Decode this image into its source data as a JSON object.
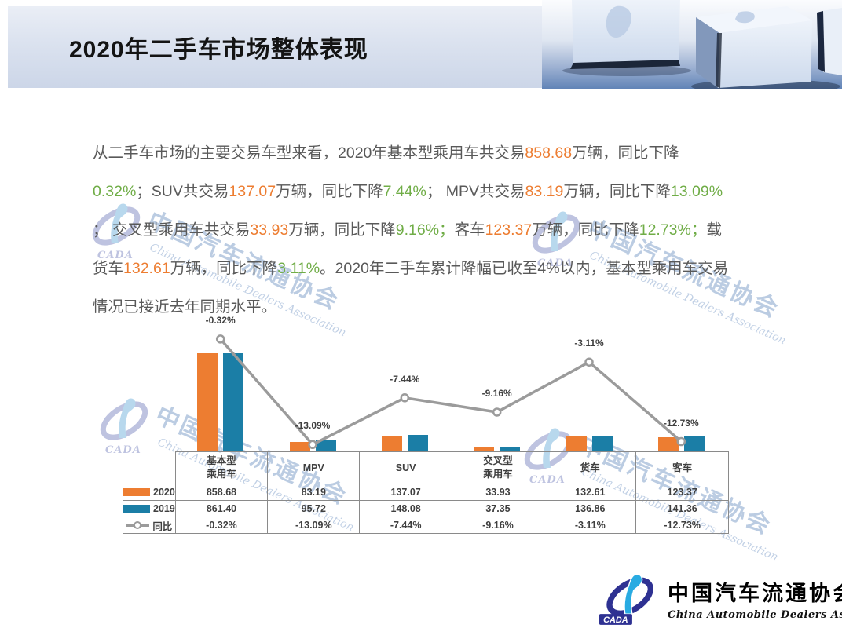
{
  "header": {
    "title": "2020年二手车市场整体表现"
  },
  "paragraph": {
    "segments": [
      {
        "style": "normal",
        "text": "从二手车市场的主要交易车型来看，2020年基本型乘用车共交易"
      },
      {
        "style": "orange",
        "text": "858.68"
      },
      {
        "style": "normal",
        "text": "万辆，同比下降"
      },
      {
        "style": "green",
        "text": "0.32%"
      },
      {
        "style": "normal",
        "text": "；SUV共交易"
      },
      {
        "style": "orange",
        "text": "137.07"
      },
      {
        "style": "normal",
        "text": "万辆，同比下降"
      },
      {
        "style": "green",
        "text": "7.44%"
      },
      {
        "style": "normal",
        "text": "；  MPV共交易"
      },
      {
        "style": "orange",
        "text": "83.19"
      },
      {
        "style": "normal",
        "text": "万辆，同比下降"
      },
      {
        "style": "green",
        "text": "13.09%"
      },
      {
        "style": "normal",
        "text": " ； 交叉型乘用车共交易"
      },
      {
        "style": "orange",
        "text": "33.93"
      },
      {
        "style": "normal",
        "text": "万辆，同比下降"
      },
      {
        "style": "green",
        "text": "9.16%；"
      },
      {
        "style": "normal",
        "text": "客车"
      },
      {
        "style": "orange",
        "text": "123.37"
      },
      {
        "style": "normal",
        "text": "万辆，同比下降"
      },
      {
        "style": "green",
        "text": "12.73%；"
      },
      {
        "style": "normal",
        "text": "载货车"
      },
      {
        "style": "orange",
        "text": "132.61"
      },
      {
        "style": "normal",
        "text": "万辆，同比下降"
      },
      {
        "style": "green",
        "text": "3.11%"
      },
      {
        "style": "normal",
        "text": "。2020年二手车累计降幅已收至4%以内，基本型乘用车交易情况已接近去年同期水平。"
      }
    ]
  },
  "chart_data": {
    "type": "bar+line",
    "categories": [
      "基本型\n乘用车",
      "MPV",
      "SUV",
      "交叉型\n乘用车",
      "货车",
      "客车"
    ],
    "unit": "万辆",
    "gridlines": false,
    "value_axis_visible": false,
    "legend_position": "table-left-column",
    "series": [
      {
        "name": "2020",
        "type": "bar",
        "color": "#ED7D31",
        "values": [
          858.68,
          83.19,
          137.07,
          33.93,
          132.61,
          123.37
        ],
        "display": [
          "858.68",
          "83.19",
          "137.07",
          "33.93",
          "132.61",
          "123.37"
        ]
      },
      {
        "name": "2019",
        "type": "bar",
        "color": "#1B7EA6",
        "values": [
          861.4,
          95.72,
          148.08,
          37.35,
          136.86,
          141.36
        ],
        "display": [
          "861.40",
          "95.72",
          "148.08",
          "37.35",
          "136.86",
          "141.36"
        ]
      },
      {
        "name": "同比",
        "type": "line",
        "color": "#9B9B9B",
        "values": [
          -0.32,
          -13.09,
          -7.44,
          -9.16,
          -3.11,
          -12.73
        ],
        "display": [
          "-0.32%",
          "-13.09%",
          "-7.44%",
          "-9.16%",
          "-3.11%",
          "-12.73%"
        ],
        "point_labels": [
          "-0.32%",
          "-13.09%",
          "-7.44%",
          "-9.16%",
          "-3.11%",
          "-12.73%"
        ]
      }
    ]
  },
  "watermark": {
    "cn": "中国汽车流通协会",
    "en": "China Automobile Dealers Association",
    "abbr": "CADA"
  },
  "footer_logo": {
    "cn": "中国汽车流通协会",
    "en": "China Automobile Dealers Association",
    "abbr": "CADA"
  },
  "colors": {
    "accent_orange": "#ED7D31",
    "accent_green": "#70AD47",
    "bar_2020": "#ED7D31",
    "bar_2019": "#1B7EA6",
    "line_gray": "#9B9B9B"
  }
}
